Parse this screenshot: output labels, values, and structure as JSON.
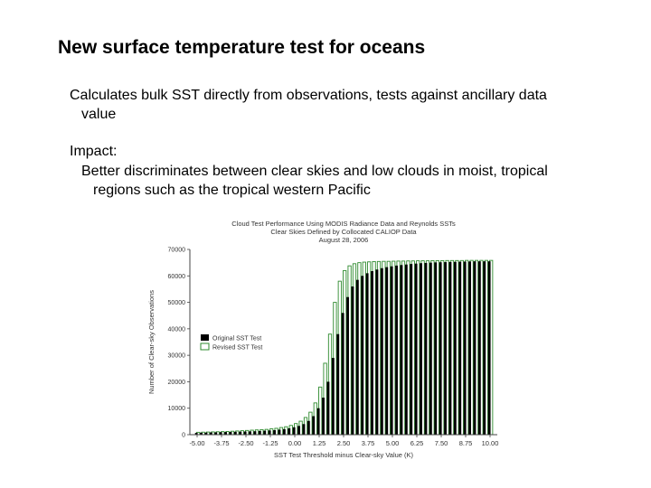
{
  "slide": {
    "title": "New surface temperature test for oceans",
    "bullet1_line1": "Calculates bulk SST directly from observations, tests against ancillary data",
    "bullet1_line2": "value",
    "bullet2_heading": "Impact:",
    "bullet3_line1": "Better discriminates between clear skies and low clouds in moist, tropical",
    "bullet3_line2": "regions such as the tropical western Pacific"
  },
  "chart_data": {
    "type": "bar",
    "title": [
      "Cloud Test Performance Using MODIS Radiance Data and Reynolds SSTs",
      "Clear Skies Defined by Collocated CALIOP Data",
      "August 28, 2006"
    ],
    "xlabel": "SST Test Threshold minus Clear-sky Value (K)",
    "ylabel": "Number of Clear-sky Observations",
    "ylim": [
      0,
      70000
    ],
    "xlim": [
      -5.0,
      10.0
    ],
    "x_ticks": [
      "-5.00",
      "-3.75",
      "-2.50",
      "-1.25",
      "0.00",
      "1.25",
      "2.50",
      "3.75",
      "5.00",
      "6.25",
      "7.50",
      "8.75",
      "10.00"
    ],
    "y_ticks": [
      "0",
      "10000",
      "20000",
      "30000",
      "40000",
      "50000",
      "60000",
      "70000"
    ],
    "legend_position": "left",
    "series": [
      {
        "name": "Original SST Test",
        "color": "#000000",
        "x": [
          -5.0,
          -4.75,
          -4.5,
          -4.25,
          -4.0,
          -3.75,
          -3.5,
          -3.25,
          -3.0,
          -2.75,
          -2.5,
          -2.25,
          -2.0,
          -1.75,
          -1.5,
          -1.25,
          -1.0,
          -0.75,
          -0.5,
          -0.25,
          0.0,
          0.25,
          0.5,
          0.75,
          1.0,
          1.25,
          1.5,
          1.75,
          2.0,
          2.25,
          2.5,
          2.75,
          3.0,
          3.25,
          3.5,
          3.75,
          4.0,
          4.25,
          4.5,
          4.75,
          5.0,
          5.25,
          5.5,
          5.75,
          6.0,
          6.25,
          6.5,
          6.75,
          7.0,
          7.25,
          7.5,
          7.75,
          8.0,
          8.25,
          8.5,
          8.75,
          9.0,
          9.25,
          9.5,
          9.75,
          10.0
        ],
        "values": [
          700,
          750,
          800,
          850,
          900,
          950,
          1000,
          1050,
          1100,
          1150,
          1200,
          1250,
          1300,
          1400,
          1500,
          1600,
          1700,
          1900,
          2100,
          2400,
          2800,
          3300,
          4000,
          5200,
          7000,
          10000,
          14000,
          20000,
          29000,
          38000,
          46000,
          52000,
          56000,
          58500,
          60000,
          61000,
          61800,
          62400,
          62900,
          63300,
          63600,
          63900,
          64100,
          64300,
          64500,
          64650,
          64800,
          64900,
          65000,
          65100,
          65150,
          65200,
          65250,
          65300,
          65350,
          65400,
          65450,
          65500,
          65500,
          65500,
          65500
        ]
      },
      {
        "name": "Revised SST Test",
        "color": "#2e8b2e",
        "x": [
          -5.0,
          -4.75,
          -4.5,
          -4.25,
          -4.0,
          -3.75,
          -3.5,
          -3.25,
          -3.0,
          -2.75,
          -2.5,
          -2.25,
          -2.0,
          -1.75,
          -1.5,
          -1.25,
          -1.0,
          -0.75,
          -0.5,
          -0.25,
          0.0,
          0.25,
          0.5,
          0.75,
          1.0,
          1.25,
          1.5,
          1.75,
          2.0,
          2.25,
          2.5,
          2.75,
          3.0,
          3.25,
          3.5,
          3.75,
          4.0,
          4.25,
          4.5,
          4.75,
          5.0,
          5.25,
          5.5,
          5.75,
          6.0,
          6.25,
          6.5,
          6.75,
          7.0,
          7.25,
          7.5,
          7.75,
          8.0,
          8.25,
          8.5,
          8.75,
          9.0,
          9.25,
          9.5,
          9.75,
          10.0
        ],
        "values": [
          900,
          950,
          1000,
          1050,
          1100,
          1150,
          1200,
          1300,
          1400,
          1500,
          1600,
          1700,
          1800,
          1900,
          2000,
          2200,
          2400,
          2700,
          3000,
          3500,
          4200,
          5100,
          6500,
          8500,
          12000,
          18000,
          27000,
          38000,
          50000,
          58000,
          62000,
          63800,
          64600,
          65000,
          65200,
          65300,
          65400,
          65450,
          65500,
          65500,
          65550,
          65600,
          65600,
          65650,
          65650,
          65700,
          65700,
          65700,
          65750,
          65750,
          65750,
          65800,
          65800,
          65800,
          65800,
          65850,
          65850,
          65850,
          65850,
          65850,
          65850
        ]
      }
    ]
  }
}
